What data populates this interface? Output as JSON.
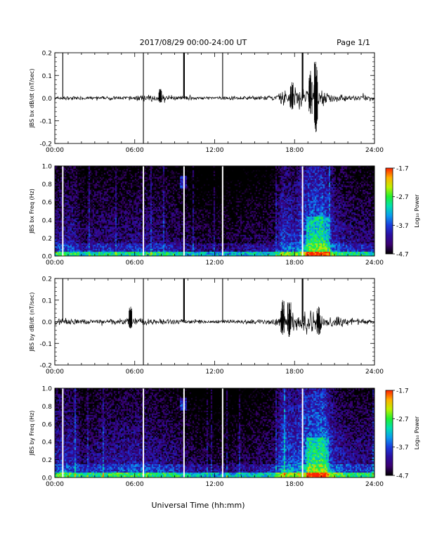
{
  "header": {
    "title": "2017/08/29  00:00-24:00 UT",
    "page": "Page 1/1"
  },
  "x_axis_label": "Universal Time (hh:mm)",
  "colorbar": {
    "label": "Log₁₀ Power",
    "ticks": [
      "-1.7",
      "-2.7",
      "-3.7",
      "-4.7"
    ],
    "range": [
      -4.7,
      -1.7
    ],
    "colors": [
      "#000000",
      "#3a0070",
      "#2a0ea0",
      "#1a3adc",
      "#0a9aee",
      "#00e0b0",
      "#20f030",
      "#c0f000",
      "#ffb000",
      "#ff2000"
    ]
  },
  "chart_data": [
    {
      "type": "line",
      "ylabel": "JBS bx dB/dt (nT/sec)",
      "xlim": [
        0,
        24
      ],
      "ylim": [
        -0.2,
        0.2
      ],
      "x_ticks": [
        "00:00",
        "06:00",
        "12:00",
        "18:00",
        "24:00"
      ],
      "y_ticks": [
        "0.2",
        "0.1",
        "0.0",
        "-0.1",
        "-0.2"
      ],
      "spikes": [
        {
          "x": 0.6,
          "y_min": 0.0,
          "y_max": 0.2
        },
        {
          "x": 6.65,
          "y_min": -0.2,
          "y_max": 0.2
        },
        {
          "x": 9.7,
          "y_min": 0.0,
          "y_max": 0.2
        },
        {
          "x": 12.6,
          "y_min": 0.0,
          "y_max": 0.2
        },
        {
          "x": 18.6,
          "y_min": 0.0,
          "y_max": 0.2
        }
      ],
      "amplitude_envelope": [
        [
          0,
          0.01
        ],
        [
          3,
          0.008
        ],
        [
          6,
          0.012
        ],
        [
          7,
          0.018
        ],
        [
          8.5,
          0.012
        ],
        [
          12,
          0.008
        ],
        [
          16.5,
          0.012
        ],
        [
          17,
          0.04
        ],
        [
          18,
          0.05
        ],
        [
          19.5,
          0.07
        ],
        [
          20.5,
          0.03
        ],
        [
          22,
          0.015
        ],
        [
          24,
          0.012
        ]
      ],
      "events": [
        {
          "x": 19.6,
          "y_min": -0.15,
          "y_max": 0.16
        },
        {
          "x": 19.2,
          "y_min": -0.07,
          "y_max": 0.12
        },
        {
          "x": 17.8,
          "y_min": -0.05,
          "y_max": 0.07
        },
        {
          "x": 7.9,
          "y_min": -0.02,
          "y_max": 0.04
        }
      ]
    },
    {
      "type": "heatmap",
      "ylabel": "JBS bx Freq (Hz)",
      "xlim": [
        0,
        24
      ],
      "ylim": [
        0,
        1
      ],
      "x_ticks": [
        "00:00",
        "06:00",
        "12:00",
        "18:00",
        "24:00"
      ],
      "y_ticks": [
        "1.0",
        "0.8",
        "0.6",
        "0.4",
        "0.2",
        "0.0"
      ],
      "zlim": [
        -4.7,
        -1.7
      ],
      "gaps": [
        0.6,
        6.65,
        9.7,
        12.6,
        18.6
      ],
      "activity": [
        [
          0,
          -4.0
        ],
        [
          1.5,
          -4.0
        ],
        [
          2,
          -4.3
        ],
        [
          3.5,
          -4.1
        ],
        [
          4.5,
          -4.2
        ],
        [
          6,
          -4.1
        ],
        [
          7,
          -4.1
        ],
        [
          9,
          -4.2
        ],
        [
          10,
          -4.4
        ],
        [
          12,
          -4.5
        ],
        [
          16.5,
          -4.3
        ],
        [
          17,
          -3.7
        ],
        [
          18,
          -3.8
        ],
        [
          19,
          -3.4
        ],
        [
          20,
          -3.3
        ],
        [
          21,
          -3.9
        ],
        [
          22,
          -4.1
        ],
        [
          24,
          -4.2
        ]
      ]
    },
    {
      "type": "line",
      "ylabel": "JBS by dB/dt (nT/sec)",
      "xlim": [
        0,
        24
      ],
      "ylim": [
        -0.2,
        0.2
      ],
      "x_ticks": [
        "00:00",
        "06:00",
        "12:00",
        "18:00",
        "24:00"
      ],
      "y_ticks": [
        "0.2",
        "0.1",
        "0.0",
        "-0.1",
        "-0.2"
      ],
      "spikes": [
        {
          "x": 0.6,
          "y_min": 0.0,
          "y_max": 0.2
        },
        {
          "x": 6.65,
          "y_min": -0.2,
          "y_max": 0.2
        },
        {
          "x": 9.7,
          "y_min": 0.0,
          "y_max": 0.2
        },
        {
          "x": 12.6,
          "y_min": 0.0,
          "y_max": 0.2
        },
        {
          "x": 18.6,
          "y_min": 0.0,
          "y_max": 0.2
        }
      ],
      "amplitude_envelope": [
        [
          0,
          0.015
        ],
        [
          1,
          0.02
        ],
        [
          3,
          0.012
        ],
        [
          5.5,
          0.018
        ],
        [
          6.5,
          0.02
        ],
        [
          8,
          0.015
        ],
        [
          12,
          0.01
        ],
        [
          16.5,
          0.015
        ],
        [
          17,
          0.05
        ],
        [
          18,
          0.05
        ],
        [
          19.5,
          0.055
        ],
        [
          21,
          0.035
        ],
        [
          22,
          0.02
        ],
        [
          24,
          0.015
        ]
      ],
      "events": [
        {
          "x": 17.1,
          "y_min": -0.06,
          "y_max": 0.1
        },
        {
          "x": 17.6,
          "y_min": -0.07,
          "y_max": 0.09
        },
        {
          "x": 19.8,
          "y_min": -0.06,
          "y_max": 0.07
        },
        {
          "x": 5.7,
          "y_min": -0.03,
          "y_max": 0.07
        }
      ]
    },
    {
      "type": "heatmap",
      "ylabel": "JBS by Freq (Hz)",
      "xlim": [
        0,
        24
      ],
      "ylim": [
        0,
        1
      ],
      "x_ticks": [
        "00:00",
        "06:00",
        "12:00",
        "18:00",
        "24:00"
      ],
      "y_ticks": [
        "1.0",
        "0.8",
        "0.6",
        "0.4",
        "0.2",
        "0.0"
      ],
      "zlim": [
        -4.7,
        -1.7
      ],
      "gaps": [
        0.6,
        6.65,
        9.7,
        12.6,
        18.6
      ],
      "activity": [
        [
          0,
          -3.8
        ],
        [
          1.5,
          -3.9
        ],
        [
          2,
          -4.2
        ],
        [
          3.5,
          -4.0
        ],
        [
          4.5,
          -4.0
        ],
        [
          6,
          -3.9
        ],
        [
          7,
          -4.0
        ],
        [
          9,
          -4.1
        ],
        [
          10,
          -4.3
        ],
        [
          12,
          -4.5
        ],
        [
          16.5,
          -4.2
        ],
        [
          17,
          -3.5
        ],
        [
          18,
          -3.6
        ],
        [
          19,
          -3.3
        ],
        [
          20,
          -3.2
        ],
        [
          21,
          -3.8
        ],
        [
          22,
          -4.0
        ],
        [
          24,
          -4.1
        ]
      ]
    }
  ]
}
